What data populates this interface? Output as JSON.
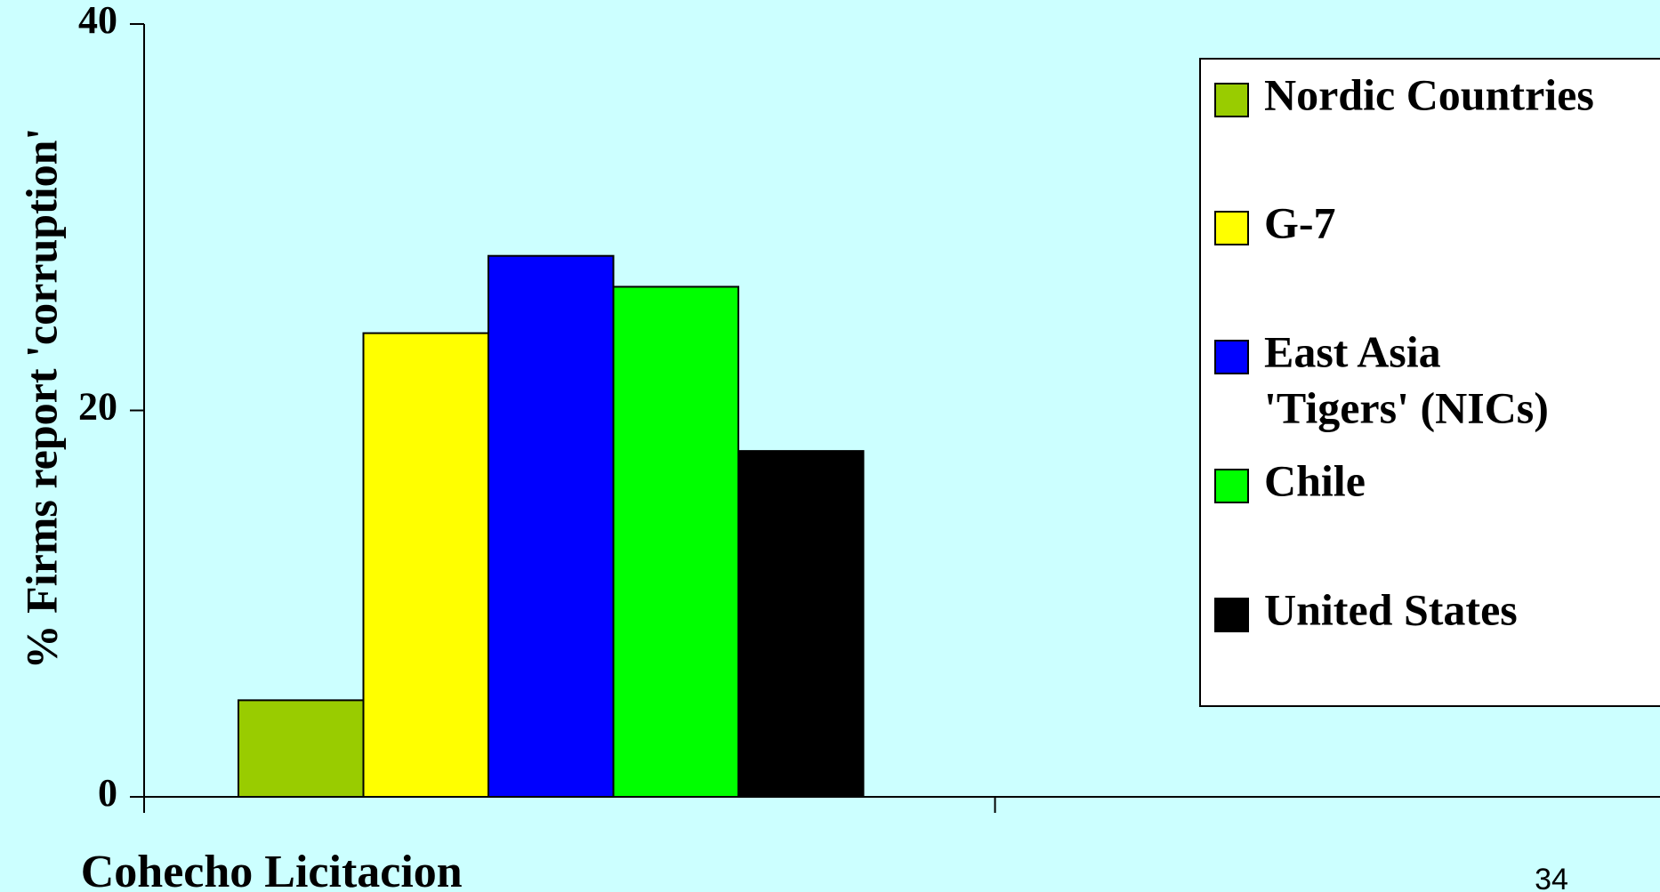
{
  "chart_data": {
    "type": "bar",
    "categories": [
      "Cohecho Licitacion",
      ""
    ],
    "series": [
      {
        "name": "Nordic Countries",
        "color": "#99cc00",
        "values": [
          5,
          null
        ]
      },
      {
        "name": "G-7",
        "color": "#ffff00",
        "values": [
          24,
          null
        ]
      },
      {
        "name": "East Asia 'Tigers' (NICs)",
        "name_lines": [
          "East Asia",
          "'Tigers' (NICs)"
        ],
        "color": "#0000ff",
        "values": [
          28,
          null
        ]
      },
      {
        "name": "Chile",
        "color": "#00ff00",
        "values": [
          26.4,
          null
        ]
      },
      {
        "name": "United States",
        "color": "#000000",
        "values": [
          17.9,
          null
        ]
      }
    ],
    "yticks": [
      0,
      20,
      40
    ],
    "ylim": [
      0,
      40
    ],
    "ylabel": "% Firms report 'corruption'",
    "xlabel": "",
    "legend_position": "right",
    "grid": false
  },
  "slide_number": "34"
}
